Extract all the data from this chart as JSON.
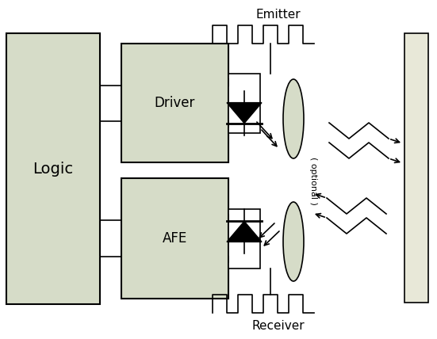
{
  "bg_color": "#ffffff",
  "box_fill": "#d6dcc8",
  "box_edge": "#000000",
  "emitter_label": "Emitter",
  "receiver_label": "Receiver",
  "optional_label": "( optional )",
  "logic_label": "Logic",
  "driver_label": "Driver",
  "afe_label": "AFE",
  "fig_w": 5.51,
  "fig_h": 4.28,
  "dpi": 100
}
